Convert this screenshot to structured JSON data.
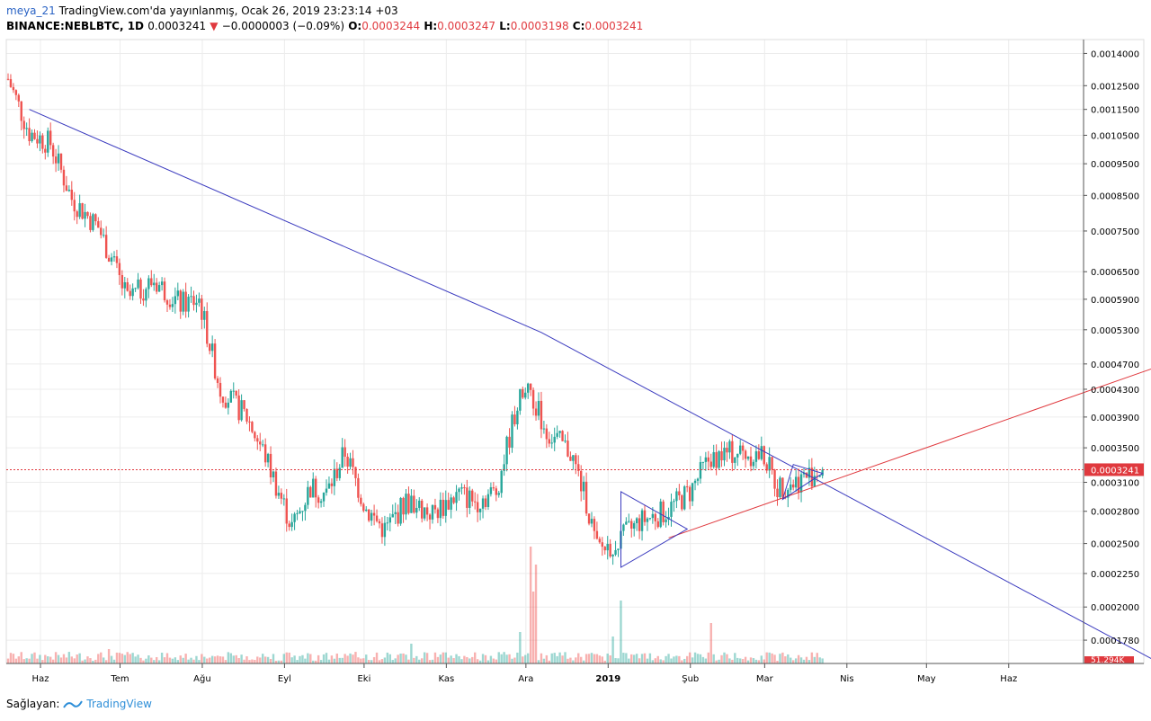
{
  "header": {
    "user": "meya_21",
    "published": "TradingView.com'da yayınlanmış, Ocak 26, 2019 23:23:14 +03",
    "symbol": "BINANCE:NEBLBTC, 1D",
    "last": "0.0003241",
    "change": "−0.0000003 (−0.09%)",
    "o_label": "O:",
    "o_value": "0.0003244",
    "h_label": "H:",
    "h_value": "0.0003247",
    "l_label": "L:",
    "l_value": "0.0003198",
    "c_label": "C:",
    "c_value": "0.0003241"
  },
  "footer": {
    "label": "Sağlayan:",
    "brand": "TradingView"
  },
  "colors": {
    "up": "#26a69a",
    "down": "#ef5350",
    "trend_blue": "#3b3bbf",
    "trend_red": "#e0393e",
    "grid": "#ececec",
    "price_label_bg": "#e0393e"
  },
  "chart_data": {
    "type": "candlestick",
    "symbol": "BINANCE:NEBLBTC",
    "interval": "1D",
    "x_ticks": [
      "Haz",
      "Tem",
      "Ağu",
      "Eyl",
      "Eki",
      "Kas",
      "Ara",
      "2019",
      "Şub",
      "Mar",
      "Nis",
      "May",
      "Haz"
    ],
    "y_ticks": [
      0.0014,
      0.00125,
      0.00115,
      0.00105,
      0.00095,
      0.00085,
      0.00075,
      0.00065,
      0.00059,
      0.00053,
      0.00047,
      0.00043,
      0.00039,
      0.00035,
      0.00031,
      0.00028,
      0.00025,
      0.000225,
      0.0002,
      0.000178
    ],
    "y_tick_labels": [
      "0.0014000",
      "0.0012500",
      "0.0011500",
      "0.0010500",
      "0.0009500",
      "0.0008500",
      "0.0007500",
      "0.0006500",
      "0.0005900",
      "0.0005300",
      "0.0004700",
      "0.0004300",
      "0.0003900",
      "0.0003500",
      "0.0003100",
      "0.0002800",
      "0.0002500",
      "0.0002250",
      "0.0002000",
      "0.0001780"
    ],
    "y_scale": "log",
    "ylim": [
      0.000164,
      0.00147
    ],
    "current_price": 0.0003241,
    "current_price_label": "0.0003241",
    "volume_label": "51.294K",
    "price_path": [
      {
        "day": 0,
        "close": 0.00128
      },
      {
        "day": 8,
        "close": 0.00106
      },
      {
        "day": 16,
        "close": 0.00102
      },
      {
        "day": 24,
        "close": 0.00084
      },
      {
        "day": 34,
        "close": 0.00076
      },
      {
        "day": 45,
        "close": 0.00059
      },
      {
        "day": 55,
        "close": 0.00063
      },
      {
        "day": 65,
        "close": 0.00058
      },
      {
        "day": 72,
        "close": 0.00059
      },
      {
        "day": 80,
        "close": 0.00043
      },
      {
        "day": 90,
        "close": 0.00039
      },
      {
        "day": 97,
        "close": 0.00034
      },
      {
        "day": 107,
        "close": 0.000265
      },
      {
        "day": 114,
        "close": 0.000305
      },
      {
        "day": 120,
        "close": 0.000298
      },
      {
        "day": 127,
        "close": 0.000345
      },
      {
        "day": 135,
        "close": 0.000282
      },
      {
        "day": 142,
        "close": 0.000262
      },
      {
        "day": 150,
        "close": 0.00029
      },
      {
        "day": 160,
        "close": 0.000278
      },
      {
        "day": 170,
        "close": 0.000298
      },
      {
        "day": 176,
        "close": 0.00029
      },
      {
        "day": 184,
        "close": 0.0003
      },
      {
        "day": 192,
        "close": 0.00041
      },
      {
        "day": 197,
        "close": 0.000425
      },
      {
        "day": 203,
        "close": 0.00037
      },
      {
        "day": 212,
        "close": 0.000345
      },
      {
        "day": 218,
        "close": 0.00029
      },
      {
        "day": 222,
        "close": 0.000245
      },
      {
        "day": 229,
        "close": 0.00025
      },
      {
        "day": 238,
        "close": 0.00027
      },
      {
        "day": 248,
        "close": 0.00028
      },
      {
        "day": 257,
        "close": 0.0003
      },
      {
        "day": 265,
        "close": 0.00034
      },
      {
        "day": 275,
        "close": 0.000345
      },
      {
        "day": 285,
        "close": 0.00034
      },
      {
        "day": 290,
        "close": 0.000305
      },
      {
        "day": 296,
        "close": 0.00031
      },
      {
        "day": 302,
        "close": 0.000318
      },
      {
        "day": 307,
        "close": 0.0003241
      }
    ],
    "trendlines": [
      {
        "name": "descending",
        "color": "#3b3bbf",
        "points": [
          {
            "day": 8,
            "price": 0.00115
          },
          {
            "day": 201,
            "price": 0.000525
          },
          {
            "day": 432,
            "price": 0.000166
          }
        ]
      },
      {
        "name": "ascending",
        "color": "#e0393e",
        "points": [
          {
            "day": 249,
            "price": 0.000255
          },
          {
            "day": 490,
            "price": 0.00056
          }
        ]
      }
    ],
    "triangles": [
      {
        "points": [
          {
            "day": 231,
            "price": 0.0003
          },
          {
            "day": 256,
            "price": 0.000263
          },
          {
            "day": 231,
            "price": 0.00023
          }
        ]
      },
      {
        "points": [
          {
            "day": 292,
            "price": 0.000292
          },
          {
            "day": 307,
            "price": 0.00032
          },
          {
            "day": 296,
            "price": 0.00033
          }
        ]
      }
    ],
    "volume_spikes": [
      {
        "day": 38,
        "volume": 16
      },
      {
        "day": 152,
        "volume": 22
      },
      {
        "day": 193,
        "volume": 35
      },
      {
        "day": 197,
        "volume": 130
      },
      {
        "day": 198,
        "volume": 80
      },
      {
        "day": 199,
        "volume": 110
      },
      {
        "day": 231,
        "volume": 70
      },
      {
        "day": 228,
        "volume": 30
      },
      {
        "day": 265,
        "volume": 45
      }
    ]
  }
}
